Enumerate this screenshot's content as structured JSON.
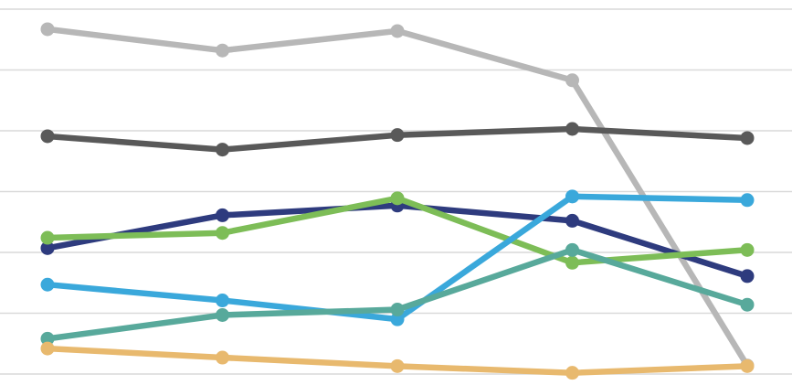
{
  "chart_data": {
    "type": "line",
    "x": [
      1,
      2,
      3,
      4,
      5
    ],
    "ylim": [
      0,
      6
    ],
    "grid": true,
    "colors": {
      "grid": "#d9d9d9",
      "background": "#ffffff"
    },
    "series": [
      {
        "color": "#b7b7b7",
        "values": [
          5.67,
          5.32,
          5.64,
          4.83,
          0.14
        ]
      },
      {
        "color": "#595959",
        "values": [
          3.91,
          3.69,
          3.93,
          4.03,
          3.88
        ]
      },
      {
        "color": "#2e3b7e",
        "values": [
          2.07,
          2.61,
          2.77,
          2.52,
          1.61
        ]
      },
      {
        "color": "#7dbd57",
        "values": [
          2.24,
          2.32,
          2.89,
          1.83,
          2.04
        ]
      },
      {
        "color": "#3aa8db",
        "values": [
          1.47,
          1.21,
          0.9,
          2.92,
          2.86
        ]
      },
      {
        "color": "#58a99b",
        "values": [
          0.58,
          0.97,
          1.06,
          2.04,
          1.14
        ]
      },
      {
        "color": "#e8b96e",
        "values": [
          0.42,
          0.27,
          0.13,
          0.02,
          0.13
        ]
      }
    ]
  }
}
